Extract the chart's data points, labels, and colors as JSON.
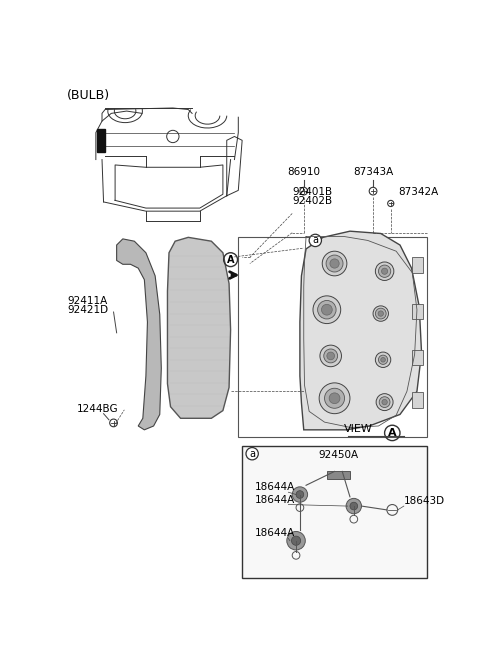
{
  "background_color": "#ffffff",
  "text_color": "#000000",
  "line_color": "#444444",
  "labels": {
    "bulb": "(BULB)",
    "86910": "86910",
    "87343A": "87343A",
    "92401B": "92401B",
    "92402B": "92402B",
    "87342A": "87342A",
    "92411A": "92411A",
    "92421D": "92421D",
    "1244BG": "1244BG",
    "view_a": "VIEW",
    "92450A": "92450A",
    "18644A": "18644A",
    "18643D": "18643D"
  },
  "car_color": "#333333",
  "part_gray": "#b0b0b0",
  "part_light": "#d0d0d0",
  "part_dark": "#888888",
  "inset_bg": "#f8f8f8"
}
